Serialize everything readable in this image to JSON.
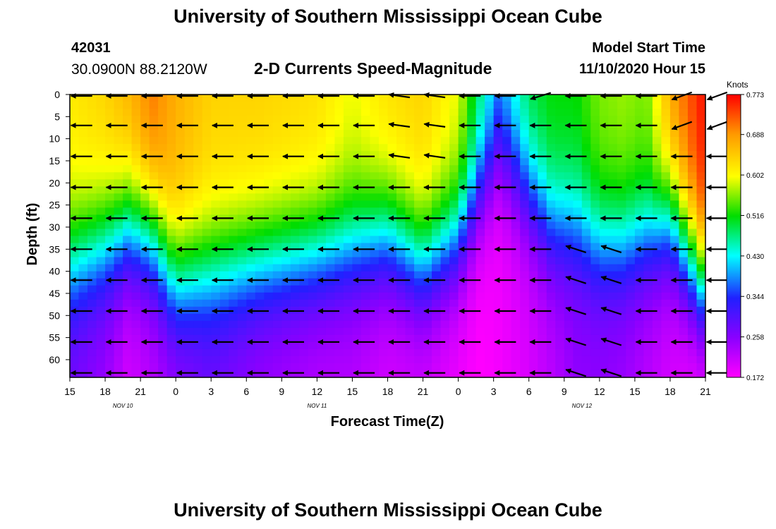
{
  "header": {
    "title_top": "University of Southern Mississippi Ocean Cube",
    "title_bottom": "University of Southern Mississippi Ocean Cube",
    "station_id": "42031",
    "coordinates": "30.0900N 88.2120W",
    "plot_title": "2-D Currents Speed-Magnitude",
    "model_start_label": "Model Start Time",
    "model_start_time": "11/10/2020 Hour 15"
  },
  "colors": {
    "arrow": "#000000",
    "axis": "#000000",
    "scale": [
      "#ff00ff",
      "#8a00ff",
      "#2020ff",
      "#00ffff",
      "#00dd00",
      "#ffff00",
      "#ff9900",
      "#ff0000"
    ]
  },
  "chart_data": {
    "type": "heatmap",
    "title": "2-D Currents Speed-Magnitude",
    "xlabel": "Forecast Time(Z)",
    "ylabel": "Depth (ft)",
    "x_ticks": [
      "15",
      "18",
      "21",
      "0",
      "3",
      "6",
      "9",
      "12",
      "15",
      "18",
      "21",
      "0",
      "3",
      "6",
      "9",
      "12",
      "15",
      "18",
      "21"
    ],
    "x_hours": [
      0,
      3,
      6,
      9,
      12,
      15,
      18,
      21,
      24,
      27,
      30,
      33,
      36,
      39,
      42,
      45,
      48,
      51,
      54
    ],
    "x_range_hours": [
      0,
      54
    ],
    "date_labels": [
      {
        "text": "NOV 10",
        "hour": 4.5
      },
      {
        "text": "NOV 11",
        "hour": 21
      },
      {
        "text": "NOV 12",
        "hour": 43.5
      }
    ],
    "y_ticks": [
      0,
      5,
      10,
      15,
      20,
      25,
      30,
      35,
      40,
      45,
      50,
      55,
      60
    ],
    "y_range": [
      0,
      64
    ],
    "colorbar": {
      "title": "Knots",
      "ticks": [
        "0.773",
        "0.688",
        "0.602",
        "0.516",
        "0.430",
        "0.344",
        "0.258",
        "0.172"
      ],
      "range": [
        0.172,
        0.773
      ]
    },
    "vector_hours": [
      1,
      4,
      7,
      10,
      13,
      16,
      19,
      22,
      25,
      28,
      31,
      34,
      37,
      40,
      43,
      46,
      49,
      52,
      55
    ],
    "vector_depths": [
      0,
      7,
      14,
      21,
      28,
      35,
      42,
      49,
      56,
      63
    ],
    "field_control": {
      "hours": [
        0,
        3,
        5,
        7,
        9,
        12,
        16,
        21,
        24,
        27,
        30,
        33,
        35,
        36.5,
        39,
        41,
        43,
        45,
        47,
        49,
        51,
        54
      ],
      "surface_speed": [
        0.62,
        0.64,
        0.67,
        0.71,
        0.67,
        0.64,
        0.64,
        0.63,
        0.6,
        0.63,
        0.64,
        0.6,
        0.48,
        0.41,
        0.5,
        0.52,
        0.52,
        0.56,
        0.57,
        0.56,
        0.68,
        0.77
      ],
      "bottom_speed": [
        0.27,
        0.24,
        0.2,
        0.22,
        0.24,
        0.27,
        0.24,
        0.22,
        0.22,
        0.2,
        0.2,
        0.18,
        0.17,
        0.18,
        0.2,
        0.22,
        0.25,
        0.25,
        0.24,
        0.22,
        0.2,
        0.17
      ],
      "decay_depth": [
        38,
        34,
        30,
        32,
        42,
        40,
        38,
        36,
        34,
        32,
        38,
        32,
        20,
        12,
        22,
        30,
        30,
        34,
        34,
        32,
        28,
        44
      ]
    }
  }
}
